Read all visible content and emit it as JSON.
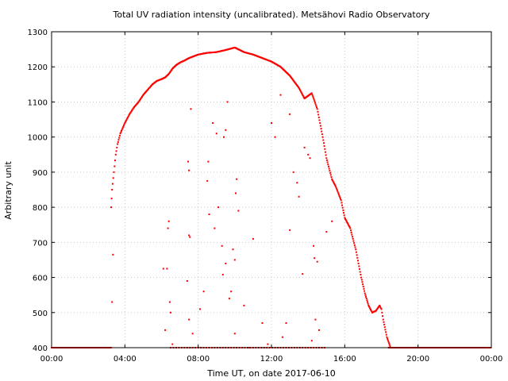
{
  "chart_data": {
    "type": "scatter",
    "title": "Total UV radiation intensity (uncalibrated). Metsähovi Radio Observatory",
    "xlabel": "Time UT, on date 2017-06-10",
    "ylabel": "Arbitrary unit",
    "xlim": [
      0,
      24
    ],
    "ylim": [
      400,
      1300
    ],
    "grid": true,
    "marker_color": "#ff0000",
    "x_ticks": [
      {
        "value": 0,
        "label": "00:00"
      },
      {
        "value": 4,
        "label": "04:00"
      },
      {
        "value": 8,
        "label": "08:00"
      },
      {
        "value": 12,
        "label": "12:00"
      },
      {
        "value": 16,
        "label": "16:00"
      },
      {
        "value": 20,
        "label": "20:00"
      },
      {
        "value": 24,
        "label": "00:00"
      }
    ],
    "y_ticks": [
      {
        "value": 400,
        "label": "400"
      },
      {
        "value": 500,
        "label": "500"
      },
      {
        "value": 600,
        "label": "600"
      },
      {
        "value": 700,
        "label": "700"
      },
      {
        "value": 800,
        "label": "800"
      },
      {
        "value": 900,
        "label": "900"
      },
      {
        "value": 1000,
        "label": "1000"
      },
      {
        "value": 1100,
        "label": "1100"
      },
      {
        "value": 1200,
        "label": "1200"
      },
      {
        "value": 1300,
        "label": "1300"
      }
    ],
    "envelope": [
      [
        3.25,
        800
      ],
      [
        3.3,
        850
      ],
      [
        3.4,
        900
      ],
      [
        3.5,
        950
      ],
      [
        3.6,
        980
      ],
      [
        3.75,
        1010
      ],
      [
        4.0,
        1040
      ],
      [
        4.25,
        1065
      ],
      [
        4.5,
        1085
      ],
      [
        4.75,
        1100
      ],
      [
        5.0,
        1120
      ],
      [
        5.25,
        1135
      ],
      [
        5.5,
        1150
      ],
      [
        5.75,
        1160
      ],
      [
        6.0,
        1165
      ],
      [
        6.2,
        1170
      ],
      [
        6.4,
        1180
      ],
      [
        6.6,
        1195
      ],
      [
        6.8,
        1205
      ],
      [
        7.0,
        1212
      ],
      [
        7.25,
        1218
      ],
      [
        7.5,
        1225
      ],
      [
        8.0,
        1235
      ],
      [
        8.5,
        1240
      ],
      [
        9.0,
        1242
      ],
      [
        9.5,
        1248
      ],
      [
        10.0,
        1255
      ],
      [
        10.5,
        1242
      ],
      [
        11.0,
        1235
      ],
      [
        11.5,
        1225
      ],
      [
        12.0,
        1215
      ],
      [
        12.5,
        1200
      ],
      [
        13.0,
        1175
      ],
      [
        13.5,
        1140
      ],
      [
        13.8,
        1110
      ],
      [
        14.2,
        1125
      ],
      [
        14.5,
        1080
      ],
      [
        14.8,
        1000
      ],
      [
        15.0,
        940
      ],
      [
        15.3,
        880
      ],
      [
        15.5,
        860
      ],
      [
        15.8,
        820
      ],
      [
        16.0,
        770
      ],
      [
        16.3,
        740
      ],
      [
        16.6,
        680
      ],
      [
        16.9,
        600
      ],
      [
        17.1,
        555
      ],
      [
        17.3,
        520
      ],
      [
        17.5,
        500
      ],
      [
        17.7,
        505
      ],
      [
        17.9,
        520
      ],
      [
        18.0,
        510
      ],
      [
        18.1,
        480
      ],
      [
        18.3,
        430
      ],
      [
        18.5,
        400
      ]
    ],
    "scatter_low": [
      [
        3.3,
        530
      ],
      [
        3.35,
        665
      ],
      [
        6.1,
        625
      ],
      [
        6.2,
        450
      ],
      [
        6.3,
        625
      ],
      [
        6.35,
        740
      ],
      [
        6.4,
        760
      ],
      [
        6.45,
        530
      ],
      [
        6.5,
        500
      ],
      [
        6.6,
        410
      ],
      [
        7.4,
        590
      ],
      [
        7.5,
        720
      ],
      [
        7.55,
        715
      ],
      [
        7.45,
        930
      ],
      [
        7.5,
        905
      ],
      [
        7.6,
        1080
      ],
      [
        7.7,
        440
      ],
      [
        7.5,
        480
      ],
      [
        8.1,
        510
      ],
      [
        8.3,
        560
      ],
      [
        8.5,
        875
      ],
      [
        8.55,
        930
      ],
      [
        8.8,
        1040
      ],
      [
        9.0,
        1010
      ],
      [
        8.6,
        780
      ],
      [
        8.9,
        740
      ],
      [
        9.1,
        800
      ],
      [
        9.3,
        690
      ],
      [
        9.5,
        640
      ],
      [
        9.35,
        608
      ],
      [
        9.4,
        1000
      ],
      [
        9.5,
        1020
      ],
      [
        9.6,
        1100
      ],
      [
        9.7,
        540
      ],
      [
        9.8,
        560
      ],
      [
        9.9,
        680
      ],
      [
        10.0,
        650
      ],
      [
        10.05,
        840
      ],
      [
        10.1,
        880
      ],
      [
        10.2,
        790
      ],
      [
        10.0,
        440
      ],
      [
        10.5,
        520
      ],
      [
        11.0,
        710
      ],
      [
        11.5,
        470
      ],
      [
        11.6,
        400
      ],
      [
        12.0,
        1040
      ],
      [
        12.2,
        1000
      ],
      [
        12.5,
        1120
      ],
      [
        13.0,
        1065
      ],
      [
        13.2,
        900
      ],
      [
        13.4,
        870
      ],
      [
        13.5,
        830
      ],
      [
        13.0,
        735
      ],
      [
        13.7,
        610
      ],
      [
        13.8,
        970
      ],
      [
        14.0,
        950
      ],
      [
        14.1,
        940
      ],
      [
        14.3,
        690
      ],
      [
        14.35,
        655
      ],
      [
        14.5,
        645
      ],
      [
        14.4,
        480
      ],
      [
        14.6,
        450
      ],
      [
        14.2,
        420
      ],
      [
        12.6,
        430
      ],
      [
        12.8,
        470
      ],
      [
        11.8,
        410
      ],
      [
        10.8,
        400
      ],
      [
        15.0,
        730
      ],
      [
        15.3,
        760
      ],
      [
        14.9,
        400
      ]
    ]
  }
}
